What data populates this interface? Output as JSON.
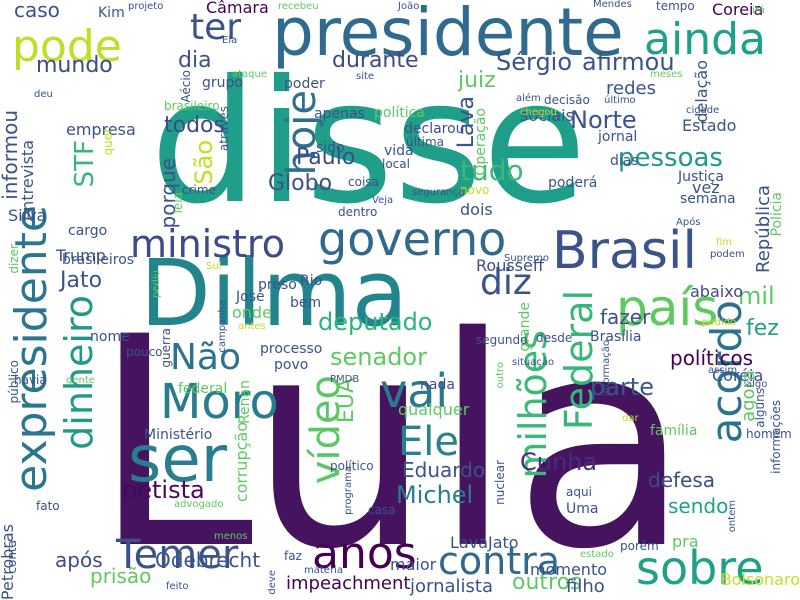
{
  "word_cloud": {
    "words": [
      {
        "text": "Lula",
        "color": "#46135f"
      },
      {
        "text": "disse",
        "color": "#1f9e89"
      },
      {
        "text": "Dilma",
        "color": "#22858e"
      },
      {
        "text": "presidente",
        "color": "#2f6b8e"
      },
      {
        "text": "ser",
        "color": "#287d8e"
      },
      {
        "text": "anos",
        "color": "#440154"
      },
      {
        "text": "Brasil",
        "color": "#3b528b"
      },
      {
        "text": "governo",
        "color": "#31688e"
      },
      {
        "text": "Temer",
        "color": "#3b528b"
      },
      {
        "text": "sobre",
        "color": "#1fa187"
      },
      {
        "text": "expresidente",
        "color": "#2a768e"
      },
      {
        "text": "país",
        "color": "#5ec962"
      },
      {
        "text": "ministro",
        "color": "#3e4a89"
      },
      {
        "text": "Moro",
        "color": "#287c8e"
      },
      {
        "text": "vai",
        "color": "#2a788e"
      },
      {
        "text": "contra",
        "color": "#31688e"
      },
      {
        "text": "pode",
        "color": "#bddf26"
      },
      {
        "text": "ainda",
        "color": "#1fa187"
      },
      {
        "text": "acordo",
        "color": "#2c728e"
      },
      {
        "text": "Federal",
        "color": "#35b779"
      },
      {
        "text": "milhões",
        "color": "#3aba76"
      },
      {
        "text": "Ele",
        "color": "#26828e"
      },
      {
        "text": "vídeo",
        "color": "#58c765"
      },
      {
        "text": "dinheiro",
        "color": "#1f998a"
      },
      {
        "text": "hoje",
        "color": "#2d708e"
      },
      {
        "text": "ter",
        "color": "#3b528b"
      },
      {
        "text": "diz",
        "color": "#3b528b"
      },
      {
        "text": "Não",
        "color": "#2c728e"
      },
      {
        "text": "pessoas",
        "color": "#1f998a"
      },
      {
        "text": "tudo",
        "color": "#3aba76"
      },
      {
        "text": "deputado",
        "color": "#2eb37c"
      },
      {
        "text": "senador",
        "color": "#5ec962"
      },
      {
        "text": "petista",
        "color": "#46085c"
      },
      {
        "text": "Michel",
        "color": "#277f8e"
      },
      {
        "text": "Cunha",
        "color": "#472d7b"
      },
      {
        "text": "Eduardo",
        "color": "#3b528b"
      },
      {
        "text": "parte",
        "color": "#38588c"
      },
      {
        "text": "durante",
        "color": "#3e4989"
      },
      {
        "text": "Sérgio",
        "color": "#3b528b"
      },
      {
        "text": "afirmou",
        "color": "#3b528b"
      },
      {
        "text": "dia",
        "color": "#3b528b"
      },
      {
        "text": "todos",
        "color": "#3e4a89"
      },
      {
        "text": "Paulo",
        "color": "#3e4a89"
      },
      {
        "text": "Globo",
        "color": "#3b528b"
      },
      {
        "text": "STF",
        "color": "#35b779"
      },
      {
        "text": "São",
        "color": "#c2df23"
      },
      {
        "text": "porque",
        "color": "#3b528b"
      },
      {
        "text": "mundo",
        "color": "#3e4a89"
      },
      {
        "text": "juiz",
        "color": "#5ec962"
      },
      {
        "text": "Lava",
        "color": "#3b528b"
      },
      {
        "text": "Norte",
        "color": "#3b528b"
      },
      {
        "text": "fazer",
        "color": "#3b528b"
      },
      {
        "text": "mil",
        "color": "#5ec962"
      },
      {
        "text": "fez",
        "color": "#1fa187"
      },
      {
        "text": "EUA",
        "color": "#5ec962"
      },
      {
        "text": "caso",
        "color": "#3b528b"
      },
      {
        "text": "Jato",
        "color": "#3b528b"
      },
      {
        "text": "políticos",
        "color": "#440154"
      },
      {
        "text": "informou",
        "color": "#3b528b"
      },
      {
        "text": "República",
        "color": "#3b528b"
      },
      {
        "text": "Odebrecht",
        "color": "#3b528b"
      },
      {
        "text": "prisão",
        "color": "#5ec962"
      },
      {
        "text": "após",
        "color": "#3e4a89"
      },
      {
        "text": "impeachment",
        "color": "#440154"
      },
      {
        "text": "outros",
        "color": "#5ec962"
      },
      {
        "text": "jornalista",
        "color": "#3b528b"
      },
      {
        "text": "filho",
        "color": "#3b528b"
      },
      {
        "text": "defesa",
        "color": "#3e4a89"
      },
      {
        "text": "sendo",
        "color": "#1fa187"
      },
      {
        "text": "Rousseff",
        "color": "#3e4a89"
      },
      {
        "text": "abaixo",
        "color": "#3e4a89"
      },
      {
        "text": "Câmara",
        "color": "#440154"
      },
      {
        "text": "Coreia",
        "color": "#440154"
      },
      {
        "text": "Coréia",
        "color": "#3b528b"
      },
      {
        "text": "agora",
        "color": "#5ec962"
      },
      {
        "text": "Bolsonaro",
        "color": "#c2df23"
      },
      {
        "text": "LavaJato",
        "color": "#3b528b"
      },
      {
        "text": "momento",
        "color": "#3b528b"
      },
      {
        "text": "maior",
        "color": "#3b528b"
      },
      {
        "text": "Petrobras",
        "color": "#3b528b"
      },
      {
        "text": "Trump",
        "color": "#3b528b"
      },
      {
        "text": "Silva",
        "color": "#3b528b"
      },
      {
        "text": "empresa",
        "color": "#3b528b"
      },
      {
        "text": "entrevista",
        "color": "#3b528b"
      },
      {
        "text": "cargo",
        "color": "#3b528b"
      },
      {
        "text": "brasileiros",
        "color": "#3b528b"
      },
      {
        "text": "José",
        "color": "#3b528b"
      },
      {
        "text": "preso",
        "color": "#3b528b"
      },
      {
        "text": "onde",
        "color": "#5ec962"
      },
      {
        "text": "Rio",
        "color": "#3b528b"
      },
      {
        "text": "bem",
        "color": "#3b528b"
      },
      {
        "text": "nome",
        "color": "#3b528b"
      },
      {
        "text": "processo",
        "color": "#3b528b"
      },
      {
        "text": "povo",
        "color": "#3b528b"
      },
      {
        "text": "nada",
        "color": "#3b528b"
      },
      {
        "text": "Renan",
        "color": "#5ec962"
      },
      {
        "text": "Ministério",
        "color": "#3b528b"
      },
      {
        "text": "federal",
        "color": "#5ec962"
      },
      {
        "text": "qualquer",
        "color": "#5ec962"
      },
      {
        "text": "corrupção",
        "color": "#5ec962"
      },
      {
        "text": "Estado",
        "color": "#3b528b"
      },
      {
        "text": "delação",
        "color": "#3b528b"
      },
      {
        "text": "redes",
        "color": "#3b528b"
      },
      {
        "text": "sociais",
        "color": "#3b528b"
      },
      {
        "text": "Justiça",
        "color": "#3b528b"
      },
      {
        "text": "poderá",
        "color": "#3b528b"
      },
      {
        "text": "vez",
        "color": "#3b528b"
      },
      {
        "text": "dias",
        "color": "#3b528b"
      },
      {
        "text": "semana",
        "color": "#3b528b"
      },
      {
        "text": "jornal",
        "color": "#3b528b"
      },
      {
        "text": "dois",
        "color": "#3b528b"
      },
      {
        "text": "política",
        "color": "#5ec962"
      },
      {
        "text": "declarou",
        "color": "#3b528b"
      },
      {
        "text": "Operação",
        "color": "#5ec962"
      },
      {
        "text": "vida",
        "color": "#3b528b"
      },
      {
        "text": "local",
        "color": "#3b528b"
      },
      {
        "text": "coisa",
        "color": "#3b528b"
      },
      {
        "text": "através",
        "color": "#3b528b"
      },
      {
        "text": "crime",
        "color": "#3b528b"
      },
      {
        "text": "grupo",
        "color": "#3b528b"
      },
      {
        "text": "poder",
        "color": "#3b528b"
      },
      {
        "text": "apenas",
        "color": "#3b528b"
      },
      {
        "text": "sido",
        "color": "#3b528b"
      },
      {
        "text": "Aécio",
        "color": "#3b528b"
      },
      {
        "text": "brasileiro",
        "color": "#5ec962"
      },
      {
        "text": "Kim",
        "color": "#3b528b"
      },
      {
        "text": "Policia",
        "color": "#5ec962"
      },
      {
        "text": "Brasília",
        "color": "#3b528b"
      },
      {
        "text": "grande",
        "color": "#5ec962"
      },
      {
        "text": "situação",
        "color": "#3b528b"
      },
      {
        "text": "informações",
        "color": "#3b528b"
      },
      {
        "text": "homem",
        "color": "#3b528b"
      },
      {
        "text": "família",
        "color": "#5ec962"
      },
      {
        "text": "alguns",
        "color": "#3b528b"
      },
      {
        "text": "político",
        "color": "#3b528b"
      },
      {
        "text": "aqui",
        "color": "#3b528b"
      },
      {
        "text": "Uma",
        "color": "#3b528b"
      },
      {
        "text": "casa",
        "color": "#3b528b"
      },
      {
        "text": "pra",
        "color": "#5ec962"
      },
      {
        "text": "porém",
        "color": "#3b528b"
      },
      {
        "text": "público",
        "color": "#3b528b"
      },
      {
        "text": "fato",
        "color": "#3b528b"
      },
      {
        "text": "conta",
        "color": "#3b528b"
      },
      {
        "text": "faz",
        "color": "#3b528b"
      },
      {
        "text": "tempo",
        "color": "#3b528b"
      },
      {
        "text": "Mendes",
        "color": "#3b528b"
      },
      {
        "text": "projeto",
        "color": "#3b528b"
      },
      {
        "text": "recebeu",
        "color": "#5ec962"
      },
      {
        "text": "João",
        "color": "#3b528b"
      },
      {
        "text": "irá",
        "color": "#5ec962"
      },
      {
        "text": "último",
        "color": "#3b528b"
      },
      {
        "text": "cidade",
        "color": "#3b528b"
      },
      {
        "text": "meses",
        "color": "#5ec962"
      },
      {
        "text": "além",
        "color": "#3b528b"
      },
      {
        "text": "decisão",
        "color": "#3b528b"
      },
      {
        "text": "última",
        "color": "#3b528b"
      },
      {
        "text": "chegou",
        "color": "#c2df23"
      },
      {
        "text": "ataque",
        "color": "#5ec962"
      },
      {
        "text": "site",
        "color": "#3b528b"
      },
      {
        "text": "Ela",
        "color": "#3b528b"
      },
      {
        "text": "deu",
        "color": "#3b528b"
      },
      {
        "text": "quer",
        "color": "#c2df23"
      },
      {
        "text": "leia",
        "color": "#5ec962"
      },
      {
        "text": "Veja",
        "color": "#3b528b"
      },
      {
        "text": "dentro",
        "color": "#3b528b"
      },
      {
        "text": "novo",
        "color": "#c2df23"
      },
      {
        "text": "segurança",
        "color": "#3b528b"
      },
      {
        "text": "Após",
        "color": "#3b528b"
      },
      {
        "text": "Supremo",
        "color": "#3b528b"
      },
      {
        "text": "fim",
        "color": "#c2df23"
      },
      {
        "text": "podem",
        "color": "#3b528b"
      },
      {
        "text": "dizer",
        "color": "#5ec962"
      },
      {
        "text": "Sul",
        "color": "#c2df23"
      },
      {
        "text": "pediu",
        "color": "#5ec962"
      },
      {
        "text": "campanha",
        "color": "#3b528b"
      },
      {
        "text": "guerra",
        "color": "#3b528b"
      },
      {
        "text": "antes",
        "color": "#c2df23"
      },
      {
        "text": "pedido",
        "color": "#c2df23"
      },
      {
        "text": "assim",
        "color": "#3b528b"
      },
      {
        "text": "algo",
        "color": "#3b528b"
      },
      {
        "text": "desde",
        "color": "#3b528b"
      },
      {
        "text": "segundo",
        "color": "#3b528b"
      },
      {
        "text": "informação",
        "color": "#3b528b"
      },
      {
        "text": "pouco",
        "color": "#3b528b"
      },
      {
        "text": "havia",
        "color": "#3b528b"
      },
      {
        "text": "gente",
        "color": "#5ec962"
      },
      {
        "text": "PMDB",
        "color": "#3b528b"
      },
      {
        "text": "programa",
        "color": "#3b528b"
      },
      {
        "text": "advogado",
        "color": "#5ec962"
      },
      {
        "text": "menos",
        "color": "#5ec962"
      },
      {
        "text": "matéria",
        "color": "#3b528b"
      },
      {
        "text": "deve",
        "color": "#3b528b"
      },
      {
        "text": "feito",
        "color": "#3b528b"
      },
      {
        "text": "nuclear",
        "color": "#3b528b"
      },
      {
        "text": "estado",
        "color": "#5ec962"
      },
      {
        "text": "outro",
        "color": "#5ec962"
      },
      {
        "text": "dar",
        "color": "#c2df23"
      },
      {
        "text": "ontem",
        "color": "#3b528b"
      }
    ]
  }
}
